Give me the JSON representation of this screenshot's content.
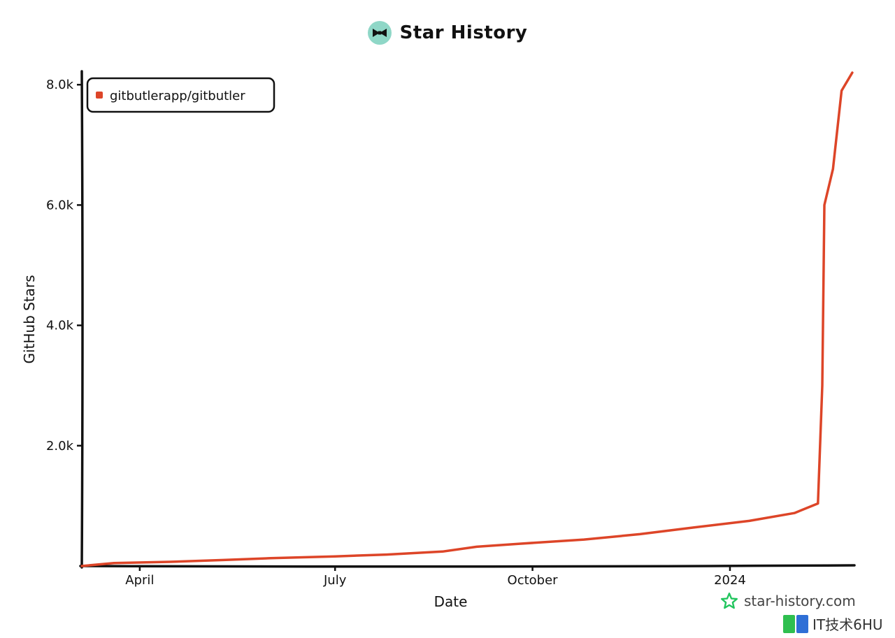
{
  "header": {
    "title": "Star History",
    "logo_icon": "bowtie-icon"
  },
  "chart_data": {
    "type": "line",
    "xlabel": "Date",
    "ylabel": "GitHub Stars",
    "x_ticks": [
      "April",
      "July",
      "October",
      "2024"
    ],
    "x_tick_dates": [
      "2023-04-01",
      "2023-07-01",
      "2023-10-01",
      "2024-01-01"
    ],
    "y_ticks": [
      "2.0k",
      "4.0k",
      "6.0k",
      "8.0k"
    ],
    "y_tick_values": [
      2000,
      4000,
      6000,
      8000
    ],
    "xlim": [
      "2023-03-05",
      "2024-02-28"
    ],
    "ylim": [
      0,
      8200
    ],
    "legend_position": "top-left",
    "series": [
      {
        "name": "gitbutlerapp/gitbutler",
        "color": "#dd4528",
        "points": [
          {
            "x": "2023-03-05",
            "y": 0
          },
          {
            "x": "2023-03-20",
            "y": 50
          },
          {
            "x": "2023-04-15",
            "y": 70
          },
          {
            "x": "2023-05-10",
            "y": 100
          },
          {
            "x": "2023-06-01",
            "y": 130
          },
          {
            "x": "2023-07-01",
            "y": 160
          },
          {
            "x": "2023-07-25",
            "y": 190
          },
          {
            "x": "2023-08-20",
            "y": 240
          },
          {
            "x": "2023-09-05",
            "y": 320
          },
          {
            "x": "2023-09-25",
            "y": 370
          },
          {
            "x": "2023-10-25",
            "y": 440
          },
          {
            "x": "2023-11-20",
            "y": 530
          },
          {
            "x": "2023-12-15",
            "y": 640
          },
          {
            "x": "2024-01-10",
            "y": 750
          },
          {
            "x": "2024-01-31",
            "y": 880
          },
          {
            "x": "2024-02-11",
            "y": 1040
          },
          {
            "x": "2024-02-13",
            "y": 3000
          },
          {
            "x": "2024-02-14",
            "y": 6000
          },
          {
            "x": "2024-02-18",
            "y": 6600
          },
          {
            "x": "2024-02-22",
            "y": 7900
          },
          {
            "x": "2024-02-27",
            "y": 8200
          }
        ]
      }
    ]
  },
  "watermark": {
    "text": "star-history.com",
    "icon": "star-outline-icon",
    "icon_color": "#22c55e"
  },
  "overlay_brand": {
    "text": "IT技术6HU",
    "icon": "brand-logo-icon"
  }
}
